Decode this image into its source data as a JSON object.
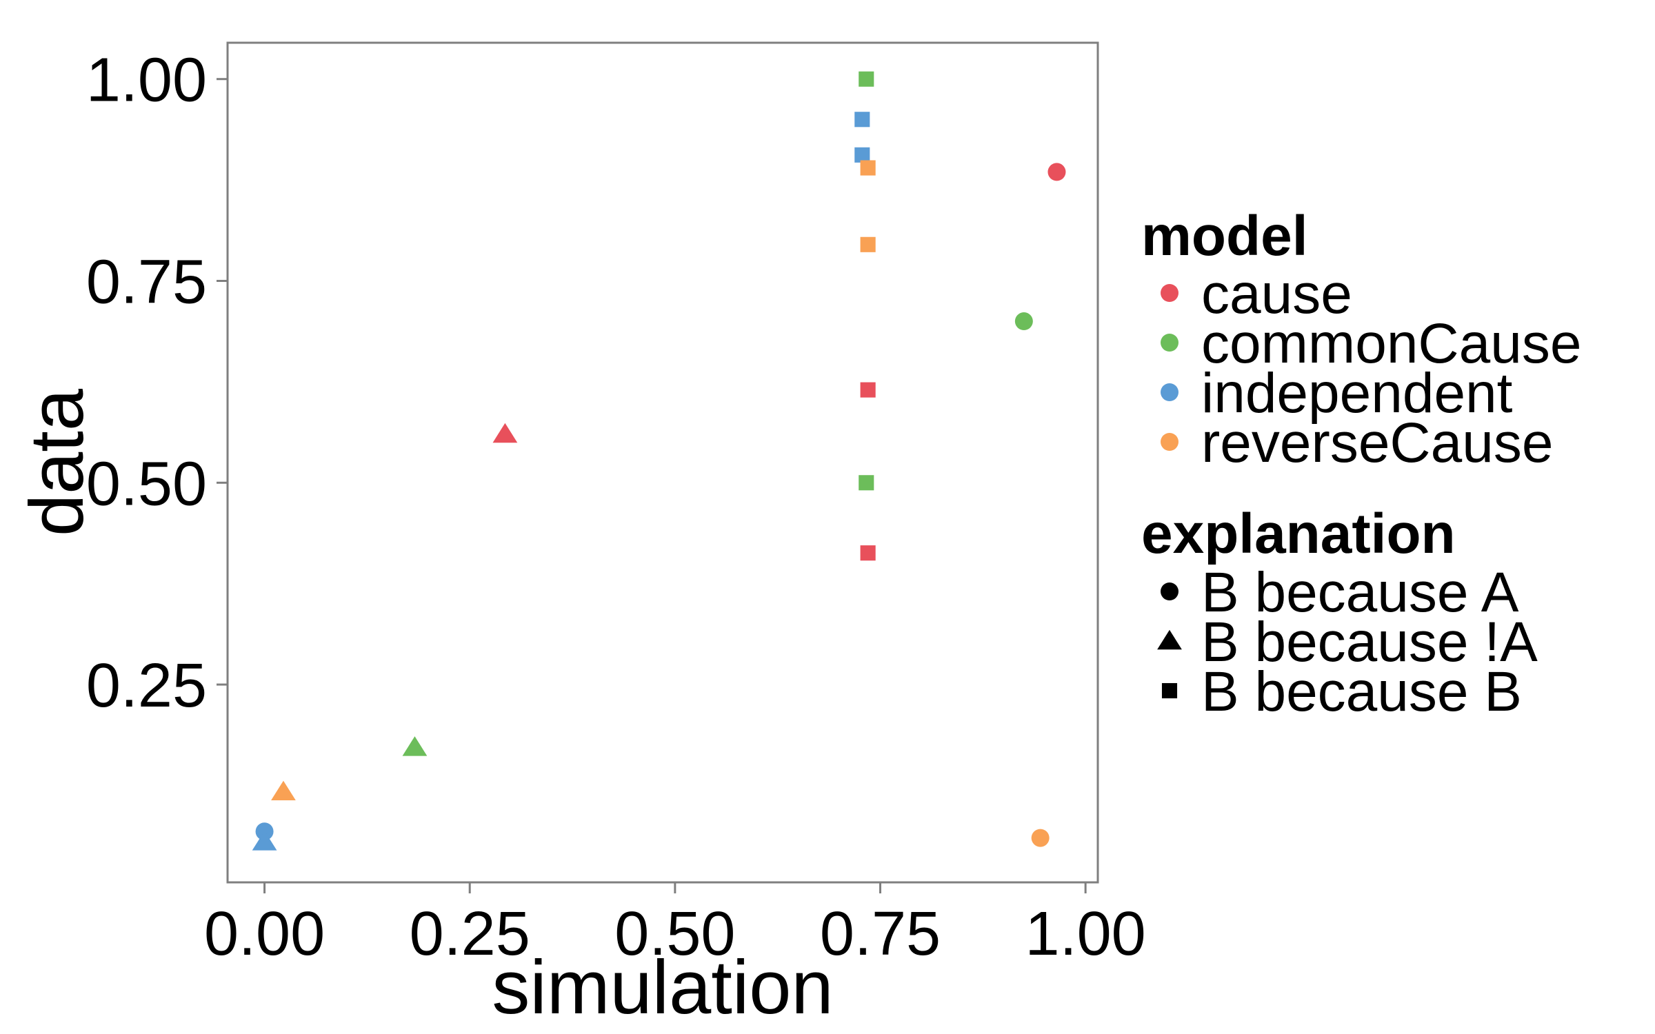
{
  "chart_data": {
    "type": "scatter",
    "xlabel": "simulation",
    "ylabel": "data",
    "xlim": [
      -0.045,
      1.015
    ],
    "ylim": [
      0.005,
      1.045
    ],
    "x_ticks": [
      0.0,
      0.25,
      0.5,
      0.75,
      1.0
    ],
    "x_tick_labels": [
      "0.00",
      "0.25",
      "0.50",
      "0.75",
      "1.00"
    ],
    "y_ticks": [
      0.25,
      0.5,
      0.75,
      1.0
    ],
    "y_tick_labels": [
      "0.25",
      "0.50",
      "0.75",
      "1.00"
    ],
    "grid": false,
    "legend_position": "right",
    "color_legend": {
      "title": "model",
      "entries": [
        {
          "label": "cause",
          "color": "#E8505B"
        },
        {
          "label": "commonCause",
          "color": "#6CBD5A"
        },
        {
          "label": "independent",
          "color": "#5A9BD5"
        },
        {
          "label": "reverseCause",
          "color": "#F9A154"
        }
      ]
    },
    "shape_legend": {
      "title": "explanation",
      "entries": [
        {
          "label": "B because A",
          "shape": "circle"
        },
        {
          "label": "B because !A",
          "shape": "triangle"
        },
        {
          "label": "B because B",
          "shape": "square"
        }
      ]
    },
    "points": [
      {
        "model": "cause",
        "explanation": "B because A",
        "x": 0.965,
        "y": 0.885
      },
      {
        "model": "cause",
        "explanation": "B because !A",
        "x": 0.293,
        "y": 0.56
      },
      {
        "model": "cause",
        "explanation": "B because B",
        "x": 0.735,
        "y": 0.615
      },
      {
        "model": "cause",
        "explanation": "B because B",
        "x": 0.735,
        "y": 0.413
      },
      {
        "model": "commonCause",
        "explanation": "B because A",
        "x": 0.925,
        "y": 0.7
      },
      {
        "model": "commonCause",
        "explanation": "B because !A",
        "x": 0.183,
        "y": 0.172
      },
      {
        "model": "commonCause",
        "explanation": "B because B",
        "x": 0.733,
        "y": 1.0
      },
      {
        "model": "commonCause",
        "explanation": "B because B",
        "x": 0.733,
        "y": 0.5
      },
      {
        "model": "independent",
        "explanation": "B because A",
        "x": 0.0,
        "y": 0.068
      },
      {
        "model": "independent",
        "explanation": "B because !A",
        "x": 0.0,
        "y": 0.055
      },
      {
        "model": "independent",
        "explanation": "B because B",
        "x": 0.728,
        "y": 0.95
      },
      {
        "model": "independent",
        "explanation": "B because B",
        "x": 0.728,
        "y": 0.906
      },
      {
        "model": "reverseCause",
        "explanation": "B because A",
        "x": 0.945,
        "y": 0.06
      },
      {
        "model": "reverseCause",
        "explanation": "B because !A",
        "x": 0.023,
        "y": 0.117
      },
      {
        "model": "reverseCause",
        "explanation": "B because B",
        "x": 0.735,
        "y": 0.89
      },
      {
        "model": "reverseCause",
        "explanation": "B because B",
        "x": 0.735,
        "y": 0.795
      }
    ]
  }
}
